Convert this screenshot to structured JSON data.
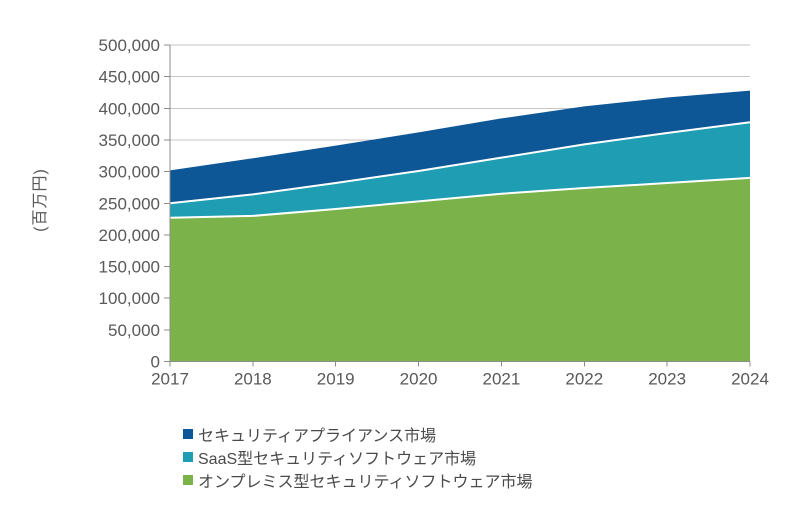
{
  "page": {
    "background": "#ffffff"
  },
  "chart_data": {
    "type": "area",
    "stacked": true,
    "title": "",
    "ylabel": "(百万円)",
    "xlabel": "",
    "ylim": [
      0,
      500000
    ],
    "y_tick_step": 50000,
    "grid": true,
    "legend_position": "bottom-left",
    "x": [
      2017,
      2018,
      2019,
      2020,
      2021,
      2022,
      2023,
      2024
    ],
    "x_tick_labels": [
      "2017",
      "2018",
      "2019",
      "2020",
      "2021",
      "2022",
      "2023",
      "2024"
    ],
    "y_tick_labels": [
      "500,000",
      "450,000",
      "400,000",
      "350,000",
      "300,000",
      "250,000",
      "200,000",
      "150,000",
      "100,000",
      "50,000",
      "0"
    ],
    "series": [
      {
        "id": "onpremise-security-software",
        "name": "オンプレミス型セキュリティソフトウェア市場",
        "color": "#7BB24A",
        "values": [
          227000,
          230000,
          241000,
          253000,
          265000,
          274000,
          282000,
          290000
        ]
      },
      {
        "id": "saas-security-software",
        "name": "SaaS型セキュリティソフトウェア市場",
        "color": "#1E9DB3",
        "values": [
          23000,
          34000,
          41000,
          48000,
          57000,
          69000,
          79000,
          88000
        ]
      },
      {
        "id": "security-appliance",
        "name": "セキュリティアプライアンス市場",
        "color": "#0E5796",
        "values": [
          52000,
          57000,
          59000,
          61000,
          62000,
          60000,
          56000,
          50000
        ]
      }
    ],
    "style": {
      "grid_color": "#C6C6C6",
      "axis_color": "#8C8C8C",
      "tick_label_color": "#595959",
      "legend_text_color": "#4a4a4a",
      "series_boundary_color": "#FFFFFF"
    }
  }
}
